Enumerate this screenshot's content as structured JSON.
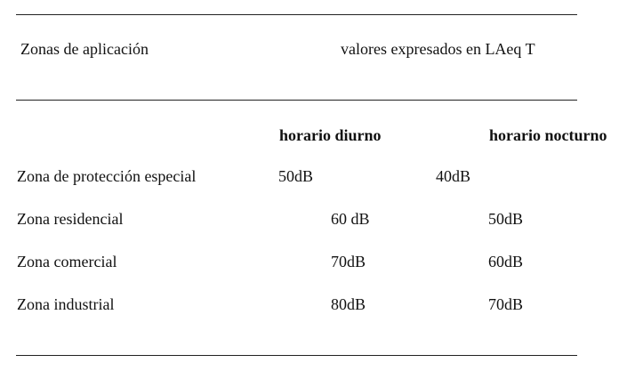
{
  "header": {
    "zones_label": "Zonas de aplicación",
    "values_label": "valores expresados en LAeq T"
  },
  "columns": {
    "day": "horario diurno",
    "night": "horario nocturno"
  },
  "rows": [
    {
      "zone": "Zona de protección especial",
      "day": "50dB",
      "night": "40dB"
    },
    {
      "zone": "Zona residencial",
      "day": "60 dB",
      "night": "50dB"
    },
    {
      "zone": "Zona comercial",
      "day": "70dB",
      "night": "60dB"
    },
    {
      "zone": "Zona industrial",
      "day": "80dB",
      "night": "70dB"
    }
  ]
}
